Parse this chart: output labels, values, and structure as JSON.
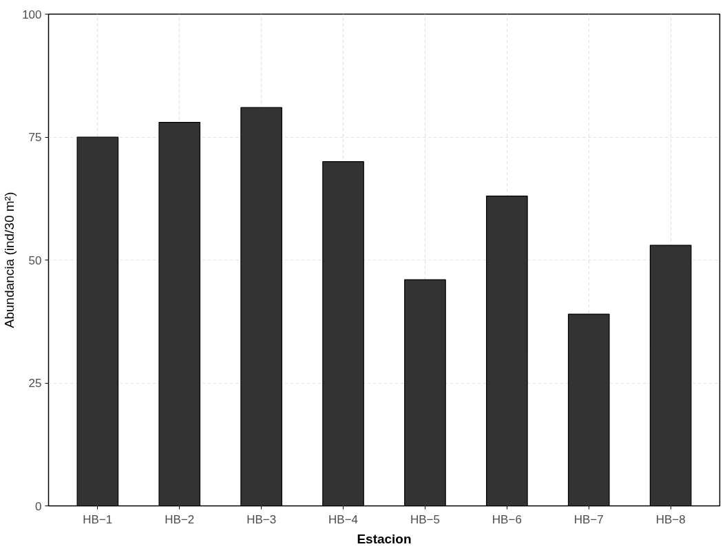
{
  "chart_data": {
    "type": "bar",
    "xlabel": "Estacion",
    "ylabel": "Abundancia (ind/30 m²)",
    "categories": [
      "HB−1",
      "HB−2",
      "HB−3",
      "HB−4",
      "HB−5",
      "HB−6",
      "HB−7",
      "HB−8"
    ],
    "values": [
      75,
      78,
      81,
      70,
      46,
      63,
      39,
      53
    ],
    "color": "#333333",
    "ylim": [
      0,
      100
    ],
    "yticks": [
      0,
      25,
      50,
      75,
      100
    ],
    "grid": true
  }
}
